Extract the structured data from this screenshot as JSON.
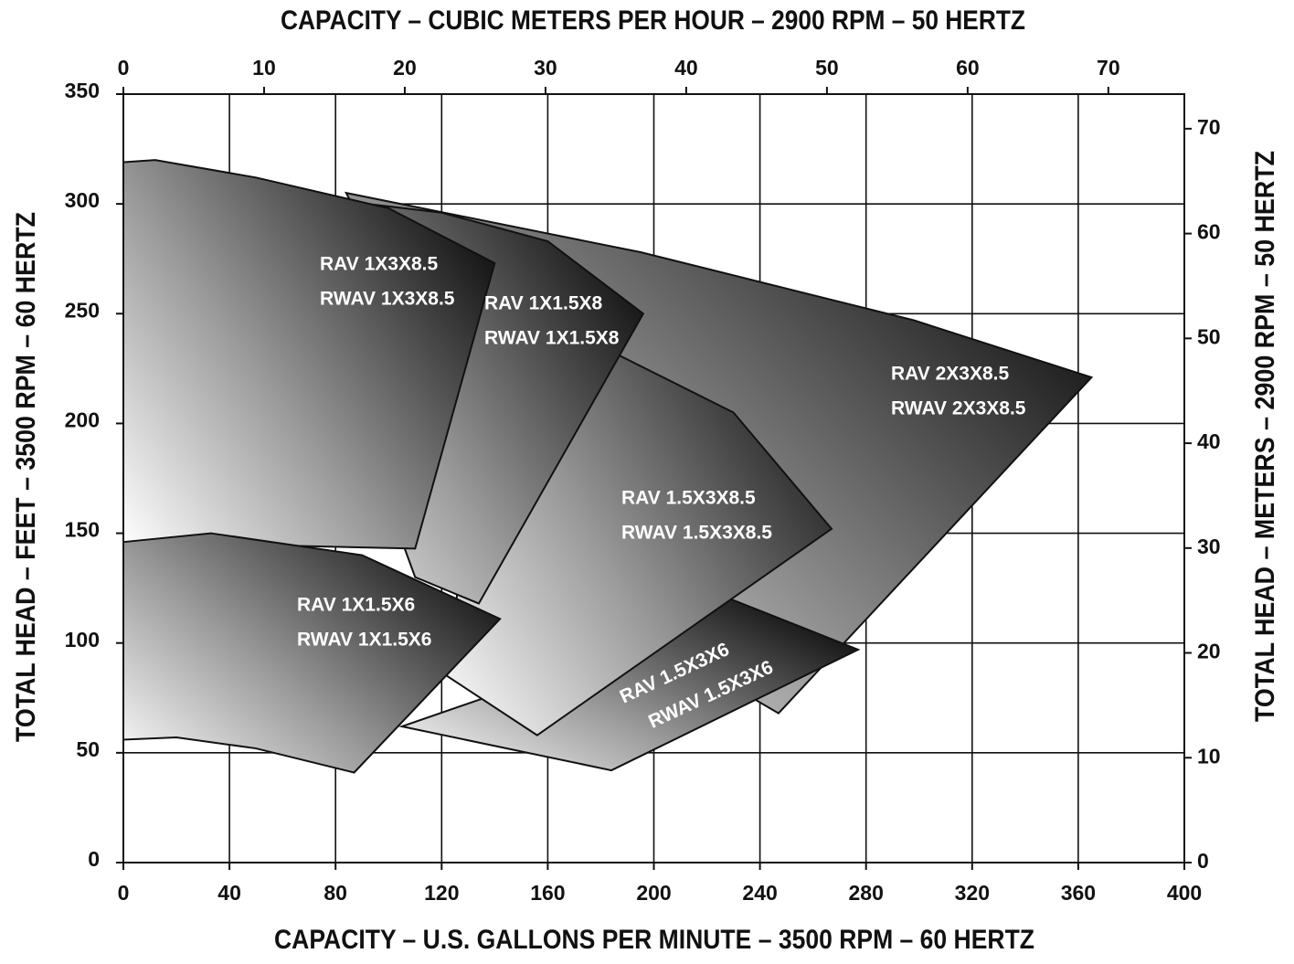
{
  "chart_data": {
    "type": "region",
    "x_label": "CAPACITY – U.S. GALLONS PER MINUTE – 3500 RPM – 60 HERTZ",
    "x2_label": "CAPACITY – CUBIC METERS PER HOUR – 2900 RPM – 50 HERTZ",
    "y_label": "TOTAL HEAD – FEET – 3500 RPM – 60 HERTZ",
    "y2_label": "TOTAL HEAD – METERS – 2900 RPM – 50 HERTZ",
    "xlim": [
      0,
      400
    ],
    "xticks": [
      0,
      40,
      80,
      120,
      160,
      200,
      240,
      280,
      320,
      360,
      400
    ],
    "x2lim": [
      0,
      75.4
    ],
    "x2ticks": [
      0,
      10,
      20,
      30,
      40,
      50,
      60,
      70
    ],
    "ylim": [
      0,
      350
    ],
    "yticks": [
      0,
      50,
      100,
      150,
      200,
      250,
      300,
      350
    ],
    "y2lim": [
      0,
      73.3
    ],
    "y2ticks": [
      0,
      10,
      20,
      30,
      40,
      50,
      60,
      70
    ],
    "grid": true,
    "series": [
      {
        "name": "RAV 2X3X8.5",
        "alt_name": "RWAV 2X3X8.5",
        "color": "#141414",
        "x": [
          84,
          195,
          298,
          365,
          247,
          230,
          150
        ],
        "values": [
          305,
          278,
          247,
          221,
          68,
          80,
          150
        ]
      },
      {
        "name": "RAV 1.5X3X6",
        "alt_name": "RWAV 1.5X3X6",
        "color": "#141414",
        "x": [
          105,
          184,
          277,
          229,
          160
        ],
        "values": [
          62,
          42,
          97,
          120,
          85
        ]
      },
      {
        "name": "RAV 1.5X3X8.5",
        "alt_name": "RWAV 1.5X3X8.5",
        "color": "#141414",
        "x": [
          140,
          177,
          230,
          267,
          156,
          122
        ],
        "values": [
          260,
          237,
          205,
          152,
          58,
          85
        ]
      },
      {
        "name": "RAV 1X1.5X8",
        "alt_name": "RWAV 1X1.5X8",
        "color": "#141414",
        "x": [
          57,
          120,
          160,
          196,
          134,
          110
        ],
        "values": [
          305,
          296,
          283,
          250,
          118,
          130
        ]
      },
      {
        "name": "RAV 1X3X8.5",
        "alt_name": "RWAV 1X3X8.5",
        "color": "#141414",
        "x": [
          0,
          12,
          50,
          100,
          140,
          110,
          0
        ],
        "values": [
          319,
          320,
          312,
          298,
          273,
          143,
          146
        ]
      },
      {
        "name": "RAV 1X1.5X6",
        "alt_name": "RWAV 1X1.5X6",
        "color": "#141414",
        "x": [
          0,
          33,
          90,
          142,
          87,
          50,
          20,
          0
        ],
        "values": [
          146,
          150,
          140,
          111,
          41,
          52,
          57,
          56
        ]
      }
    ]
  }
}
